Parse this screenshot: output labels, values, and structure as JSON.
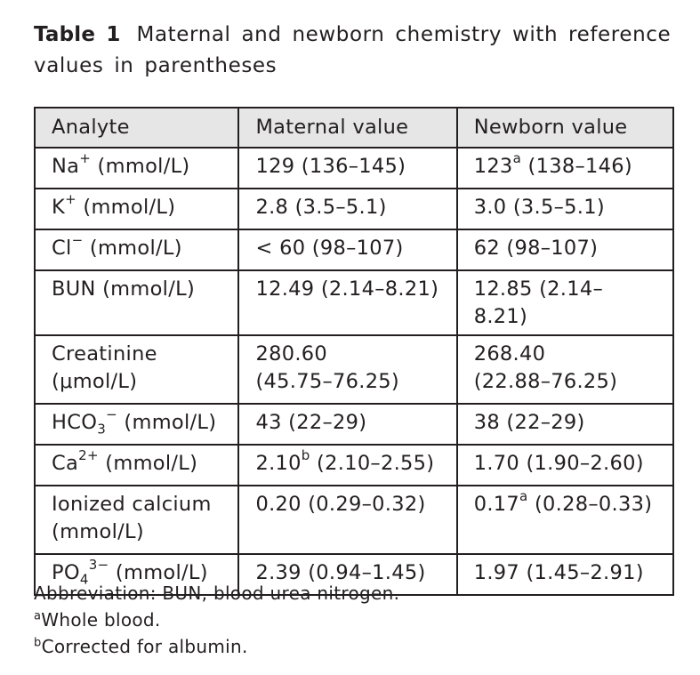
{
  "caption": {
    "label": "Table 1",
    "text": "Maternal and newborn chemistry with reference values in parentheses"
  },
  "table": {
    "headers": [
      "Analyte",
      "Maternal value",
      "Newborn value"
    ],
    "rows": [
      {
        "analyte": {
          "base": "Na",
          "sup": "+",
          "sub": "",
          "unit": " (mmol/L)"
        },
        "maternal": {
          "value": "129",
          "mark": "",
          "ref": " (136–145)"
        },
        "newborn": {
          "value": "123",
          "mark": "a",
          "ref": " (138–146)"
        }
      },
      {
        "analyte": {
          "base": "K",
          "sup": "+",
          "sub": "",
          "unit": " (mmol/L)"
        },
        "maternal": {
          "value": "2.8",
          "mark": "",
          "ref": " (3.5–5.1)"
        },
        "newborn": {
          "value": "3.0",
          "mark": "",
          "ref": " (3.5–5.1)"
        }
      },
      {
        "analyte": {
          "base": "Cl",
          "sup": "−",
          "sub": "",
          "unit": " (mmol/L)"
        },
        "maternal": {
          "value": "< 60",
          "mark": "",
          "ref": " (98–107)"
        },
        "newborn": {
          "value": "62",
          "mark": "",
          "ref": " (98–107)"
        }
      },
      {
        "analyte": {
          "base": "BUN",
          "sup": "",
          "sub": "",
          "unit": " (mmol/L)"
        },
        "maternal": {
          "value": "12.49",
          "mark": "",
          "ref": " (2.14–8.21)"
        },
        "newborn": {
          "value": "12.85",
          "mark": "",
          "ref": " (2.14–8.21)"
        }
      },
      {
        "analyte": {
          "base": "Creatinine",
          "sup": "",
          "sub": "",
          "unit": " (μmol/L)"
        },
        "maternal": {
          "value": "280.60",
          "mark": "",
          "ref": " (45.75–76.25)"
        },
        "newborn": {
          "value": "268.40",
          "mark": "",
          "ref": " (22.88–76.25)"
        }
      },
      {
        "analyte": {
          "base": "HCO",
          "sub": "3",
          "sup": "−",
          "unit": " (mmol/L)"
        },
        "maternal": {
          "value": "43",
          "mark": "",
          "ref": " (22–29)"
        },
        "newborn": {
          "value": "38",
          "mark": "",
          "ref": " (22–29)"
        }
      },
      {
        "analyte": {
          "base": "Ca",
          "sup": "2+",
          "sub": "",
          "unit": " (mmol/L)"
        },
        "maternal": {
          "value": "2.10",
          "mark": "b",
          "ref": " (2.10–2.55)"
        },
        "newborn": {
          "value": "1.70",
          "mark": "",
          "ref": " (1.90–2.60)"
        }
      },
      {
        "analyte": {
          "base": "Ionized calcium",
          "sup": "",
          "sub": "",
          "unit": " (mmol/L)"
        },
        "maternal": {
          "value": "0.20",
          "mark": "",
          "ref": " (0.29–0.32)"
        },
        "newborn": {
          "value": "0.17",
          "mark": "a",
          "ref": " (0.28–0.33)"
        }
      },
      {
        "analyte": {
          "base": "PO",
          "sub": "4",
          "sup": "3−",
          "unit": " (mmol/L)"
        },
        "maternal": {
          "value": "2.39",
          "mark": "",
          "ref": " (0.94–1.45)"
        },
        "newborn": {
          "value": "1.97",
          "mark": "",
          "ref": " (1.45–2.91)"
        }
      }
    ]
  },
  "footnotes": {
    "abbreviation": "Abbreviation: BUN, blood urea nitrogen.",
    "a_mark": "a",
    "a_text": "Whole blood.",
    "b_mark": "b",
    "b_text": "Corrected for albumin."
  }
}
